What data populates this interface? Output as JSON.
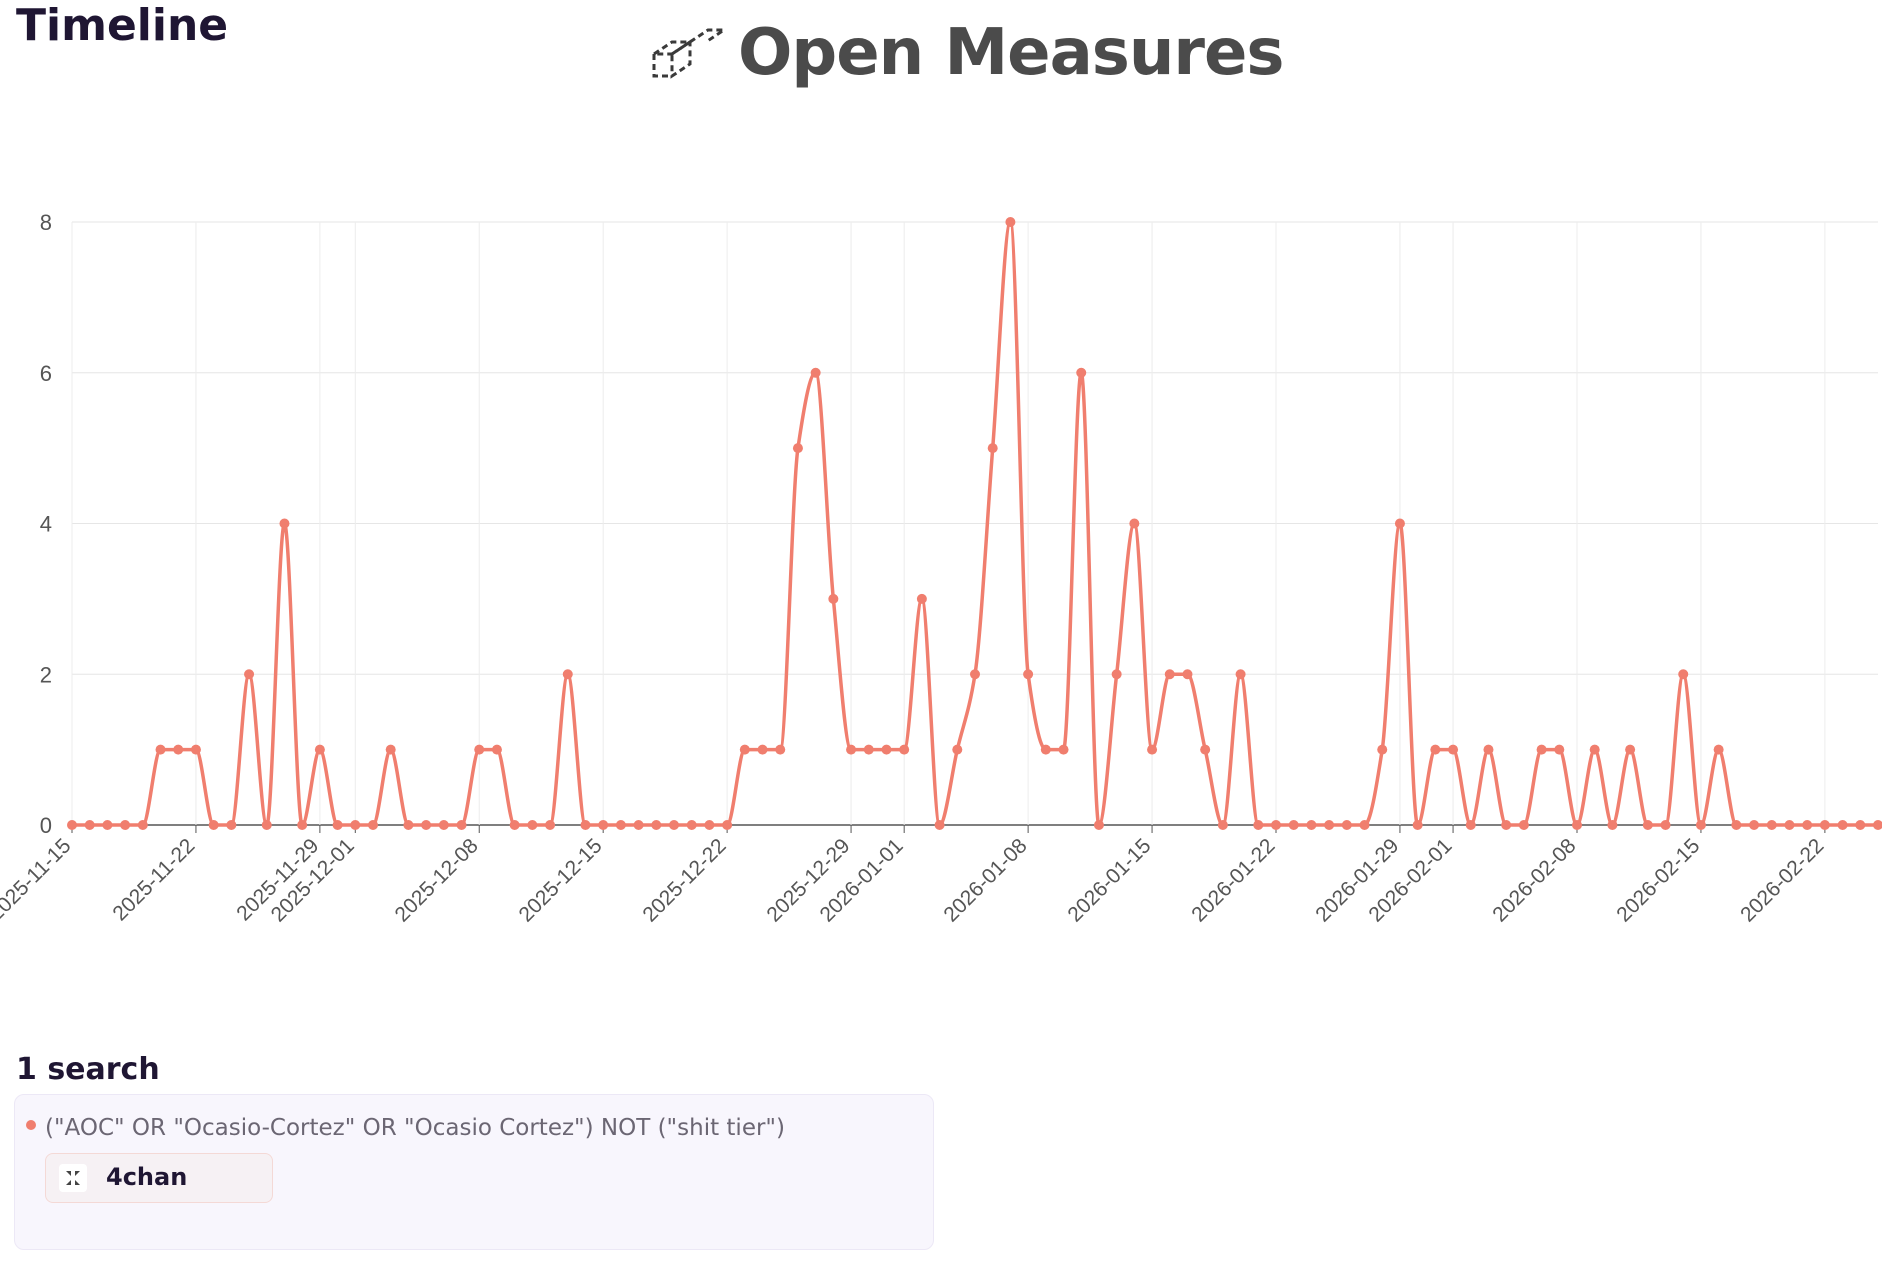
{
  "page": {
    "title": "Timeline",
    "brand": "Open Measures",
    "brand_logo_icon": "open-measures-logo-icon"
  },
  "searches": {
    "heading": "1 search",
    "items": [
      {
        "query": "(\"AOC\" OR \"Ocasio-Cortez\" OR \"Ocasio Cortez\") NOT (\"shit tier\")",
        "color": "#f07e6e",
        "platform": "4chan",
        "platform_icon": "4chan-clover-icon"
      }
    ]
  },
  "chart_data": {
    "type": "line",
    "x_start": "2025-11-15",
    "x_end": "2026-02-25",
    "ylim": [
      0,
      8
    ],
    "y_ticks": [
      0,
      2,
      4,
      6,
      8
    ],
    "x_tick_labels": [
      "2025-11-15",
      "2025-11-22",
      "2025-11-29",
      "2025-12-01",
      "2025-12-08",
      "2025-12-15",
      "2025-12-22",
      "2025-12-29",
      "2026-01-01",
      "2026-01-08",
      "2026-01-15",
      "2026-01-22",
      "2026-01-29",
      "2026-02-01",
      "2026-02-08",
      "2026-02-15",
      "2026-02-22"
    ],
    "grid": true,
    "line_color": "#f07e6e",
    "x": [
      "2025-11-15",
      "2025-11-16",
      "2025-11-17",
      "2025-11-18",
      "2025-11-19",
      "2025-11-20",
      "2025-11-21",
      "2025-11-22",
      "2025-11-23",
      "2025-11-24",
      "2025-11-25",
      "2025-11-26",
      "2025-11-27",
      "2025-11-28",
      "2025-11-29",
      "2025-11-30",
      "2025-12-01",
      "2025-12-02",
      "2025-12-03",
      "2025-12-04",
      "2025-12-05",
      "2025-12-06",
      "2025-12-07",
      "2025-12-08",
      "2025-12-09",
      "2025-12-10",
      "2025-12-11",
      "2025-12-12",
      "2025-12-13",
      "2025-12-14",
      "2025-12-15",
      "2025-12-16",
      "2025-12-17",
      "2025-12-18",
      "2025-12-19",
      "2025-12-20",
      "2025-12-21",
      "2025-12-22",
      "2025-12-23",
      "2025-12-24",
      "2025-12-25",
      "2025-12-26",
      "2025-12-27",
      "2025-12-28",
      "2025-12-29",
      "2025-12-30",
      "2025-12-31",
      "2026-01-01",
      "2026-01-02",
      "2026-01-03",
      "2026-01-04",
      "2026-01-05",
      "2026-01-06",
      "2026-01-07",
      "2026-01-08",
      "2026-01-09",
      "2026-01-10",
      "2026-01-11",
      "2026-01-12",
      "2026-01-13",
      "2026-01-14",
      "2026-01-15",
      "2026-01-16",
      "2026-01-17",
      "2026-01-18",
      "2026-01-19",
      "2026-01-20",
      "2026-01-21",
      "2026-01-22",
      "2026-01-23",
      "2026-01-24",
      "2026-01-25",
      "2026-01-26",
      "2026-01-27",
      "2026-01-28",
      "2026-01-29",
      "2026-01-30",
      "2026-01-31",
      "2026-02-01",
      "2026-02-02",
      "2026-02-03",
      "2026-02-04",
      "2026-02-05",
      "2026-02-06",
      "2026-02-07",
      "2026-02-08",
      "2026-02-09",
      "2026-02-10",
      "2026-02-11",
      "2026-02-12",
      "2026-02-13",
      "2026-02-14",
      "2026-02-15",
      "2026-02-16",
      "2026-02-17",
      "2026-02-18",
      "2026-02-19",
      "2026-02-20",
      "2026-02-21",
      "2026-02-22",
      "2026-02-23",
      "2026-02-24",
      "2026-02-25"
    ],
    "values": [
      0,
      0,
      0,
      0,
      0,
      1,
      1,
      1,
      0,
      0,
      2,
      0,
      4,
      0,
      1,
      0,
      0,
      0,
      1,
      0,
      0,
      0,
      0,
      1,
      1,
      0,
      0,
      0,
      2,
      0,
      0,
      0,
      0,
      0,
      0,
      0,
      0,
      0,
      1,
      1,
      1,
      5,
      6,
      3,
      1,
      1,
      1,
      1,
      3,
      0,
      1,
      2,
      5,
      8,
      2,
      1,
      1,
      6,
      0,
      2,
      4,
      1,
      2,
      2,
      1,
      0,
      2,
      0,
      0,
      0,
      0,
      0,
      0,
      0,
      1,
      4,
      0,
      1,
      1,
      0,
      1,
      0,
      0,
      1,
      1,
      0,
      1,
      0,
      1,
      0,
      0,
      2,
      0,
      1,
      0,
      0,
      0,
      0,
      0,
      0,
      0,
      0,
      0
    ]
  }
}
